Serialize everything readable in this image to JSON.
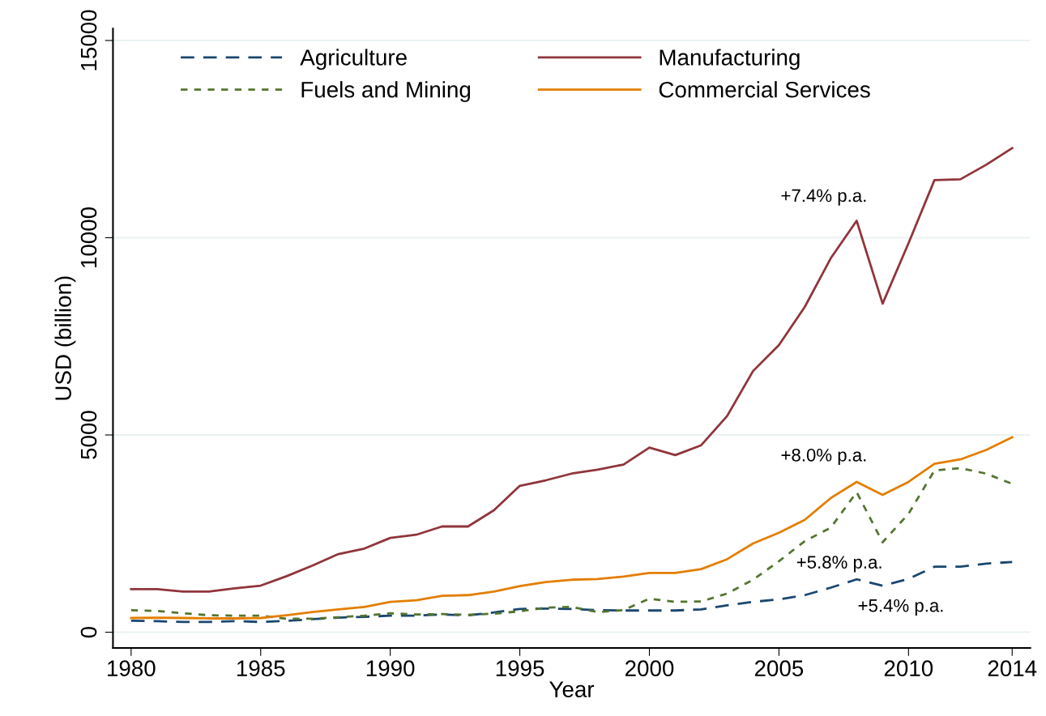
{
  "chart_data": {
    "type": "line",
    "xlabel": "Year",
    "ylabel": "USD (billion)",
    "x": [
      1980,
      1981,
      1982,
      1983,
      1984,
      1985,
      1986,
      1987,
      1988,
      1989,
      1990,
      1991,
      1992,
      1993,
      1994,
      1995,
      1996,
      1997,
      1998,
      1999,
      2000,
      2001,
      2002,
      2003,
      2004,
      2005,
      2006,
      2007,
      2008,
      2009,
      2010,
      2011,
      2012,
      2013,
      2014
    ],
    "series": [
      {
        "name": "Agriculture",
        "color": "#1a476f",
        "line_style": "dashed",
        "values": [
          290,
          280,
          260,
          260,
          280,
          260,
          285,
          330,
          370,
          390,
          420,
          420,
          450,
          430,
          500,
          590,
          600,
          590,
          560,
          550,
          550,
          550,
          580,
          680,
          770,
          830,
          940,
          1130,
          1340,
          1180,
          1350,
          1660,
          1660,
          1740,
          1780
        ]
      },
      {
        "name": "Fuels and Mining",
        "color": "#55752f",
        "line_style": "dotted",
        "values": [
          560,
          540,
          480,
          430,
          420,
          420,
          340,
          340,
          380,
          420,
          480,
          450,
          460,
          440,
          470,
          530,
          620,
          640,
          510,
          560,
          850,
          770,
          780,
          980,
          1330,
          1800,
          2310,
          2650,
          3550,
          2280,
          3000,
          4100,
          4160,
          4020,
          3760
        ]
      },
      {
        "name": "Manufacturing",
        "color": "#90353b",
        "line_style": "solid",
        "values": [
          1090,
          1090,
          1030,
          1030,
          1110,
          1180,
          1420,
          1690,
          1980,
          2120,
          2390,
          2470,
          2680,
          2680,
          3090,
          3710,
          3850,
          4020,
          4120,
          4250,
          4680,
          4490,
          4740,
          5480,
          6620,
          7280,
          8250,
          9480,
          10430,
          8330,
          9860,
          11460,
          11480,
          11850,
          12270
        ]
      },
      {
        "name": "Commercial Services",
        "color": "#e37e00",
        "line_style": "solid",
        "values": [
          360,
          370,
          360,
          350,
          350,
          360,
          430,
          510,
          580,
          640,
          770,
          810,
          920,
          940,
          1030,
          1170,
          1270,
          1330,
          1350,
          1410,
          1500,
          1500,
          1600,
          1850,
          2250,
          2520,
          2850,
          3400,
          3810,
          3480,
          3810,
          4270,
          4380,
          4620,
          4940
        ]
      }
    ],
    "annotations": [
      "+7.4% p.a.",
      "+8.0% p.a.",
      "+5.8% p.a.",
      "+5.4% p.a."
    ],
    "xlim": [
      1979.3,
      2014.7
    ],
    "xticks": [
      1980,
      1985,
      1990,
      1995,
      2000,
      2005,
      2010,
      2014
    ],
    "ylim": [
      -400,
      15300
    ],
    "yticks": [
      0,
      5000,
      10000,
      15000
    ],
    "grid": "y",
    "legend": "top",
    "marker": "none"
  }
}
